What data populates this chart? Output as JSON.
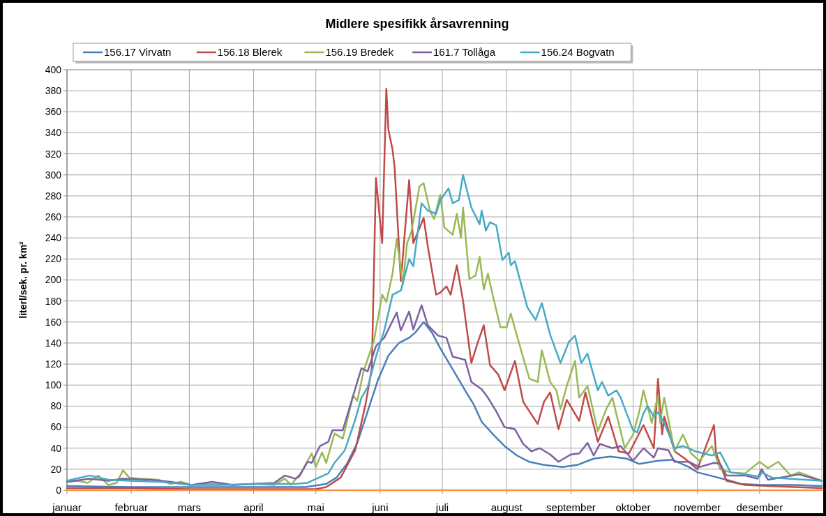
{
  "chart_data": {
    "type": "line",
    "title": "Midlere spesifikk årsavrenning",
    "ylabel": "literl/sek. pr. km²",
    "xlim": [
      "--01-01",
      "--12-31"
    ],
    "ylim": [
      0,
      400
    ],
    "xticks": [
      {
        "value": "--01-01",
        "label": "januar"
      },
      {
        "value": "--02-01",
        "label": "februar"
      },
      {
        "value": "--03-01",
        "label": "mars"
      },
      {
        "value": "--04-01",
        "label": "april"
      },
      {
        "value": "--05-01",
        "label": "mai"
      },
      {
        "value": "--06-01",
        "label": "juni"
      },
      {
        "value": "--07-01",
        "label": "juli"
      },
      {
        "value": "--08-01",
        "label": "august"
      },
      {
        "value": "--09-01",
        "label": "september"
      },
      {
        "value": "--10-01",
        "label": "oktober"
      },
      {
        "value": "--11-01",
        "label": "november"
      },
      {
        "value": "--12-01",
        "label": "desember"
      }
    ],
    "yticks": [
      0,
      20,
      40,
      60,
      80,
      100,
      120,
      140,
      160,
      180,
      200,
      220,
      240,
      260,
      280,
      300,
      320,
      340,
      360,
      380,
      400
    ],
    "grid": true,
    "legend": "top",
    "marker": "none",
    "line_style": "solid",
    "series": [
      {
        "name": "156.17 Virvatn",
        "color": "#4a7ebb",
        "x": [
          "--01-01",
          "--01-31",
          "--03-02",
          "--04-01",
          "--04-26",
          "--05-06",
          "--05-11",
          "--05-16",
          "--05-21",
          "--05-26",
          "--05-31",
          "--06-05",
          "--06-10",
          "--06-15",
          "--06-18",
          "--06-22",
          "--06-26",
          "--06-30",
          "--07-06",
          "--07-12",
          "--07-16",
          "--07-20",
          "--07-26",
          "--07-31",
          "--08-06",
          "--08-12",
          "--08-19",
          "--08-28",
          "--09-04",
          "--09-12",
          "--09-20",
          "--09-28",
          "--10-04",
          "--10-13",
          "--10-20",
          "--10-28",
          "--11-01",
          "--11-07",
          "--11-15",
          "--11-22",
          "--12-02",
          "--12-17",
          "--12-31"
        ],
        "values": [
          4,
          3,
          3,
          3,
          3,
          6,
          12,
          25,
          45,
          75,
          105,
          128,
          140,
          145,
          150,
          160,
          150,
          135,
          115,
          95,
          82,
          65,
          52,
          42,
          33,
          27,
          24,
          22,
          24,
          30,
          32,
          30,
          25,
          28,
          29,
          22,
          17,
          14,
          10,
          6,
          5,
          5,
          4
        ]
      },
      {
        "name": "156.18 Blerek",
        "color": "#be4b48",
        "x": [
          "--01-01",
          "--01-31",
          "--03-02",
          "--04-01",
          "--05-01",
          "--05-06",
          "--05-13",
          "--05-20",
          "--05-25",
          "--05-28",
          "--05-30",
          "--06-02",
          "--06-04",
          "--06-05",
          "--06-07",
          "--06-08",
          "--06-11",
          "--06-15",
          "--06-17",
          "--06-22",
          "--06-24",
          "--06-28",
          "--06-30",
          "--07-03",
          "--07-05",
          "--07-08",
          "--07-11",
          "--07-15",
          "--07-18",
          "--07-21",
          "--07-24",
          "--07-28",
          "--07-31",
          "--08-05",
          "--08-09",
          "--08-16",
          "--08-19",
          "--08-22",
          "--08-26",
          "--08-30",
          "--09-05",
          "--09-08",
          "--09-14",
          "--09-19",
          "--09-24",
          "--09-29",
          "--10-06",
          "--10-11",
          "--10-13",
          "--10-15",
          "--10-16",
          "--10-21",
          "--10-26",
          "--11-01",
          "--11-09",
          "--11-10",
          "--11-15",
          "--11-24",
          "--12-05",
          "--12-31"
        ],
        "values": [
          2,
          2,
          1,
          1,
          1,
          3,
          12,
          38,
          82,
          116,
          297,
          235,
          382,
          343,
          324,
          307,
          199,
          295,
          235,
          259,
          232,
          186,
          188,
          194,
          186,
          214,
          180,
          121,
          140,
          157,
          119,
          110,
          95,
          123,
          84,
          63,
          84,
          93,
          58,
          86,
          66,
          93,
          46,
          70,
          37,
          35,
          62,
          40,
          106,
          53,
          70,
          37,
          30,
          20,
          62,
          35,
          9,
          5,
          4,
          2
        ]
      },
      {
        "name": "156.19 Bredek",
        "color": "#98b954",
        "x": [
          "--01-01",
          "--01-06",
          "--01-11",
          "--01-16",
          "--01-21",
          "--01-25",
          "--01-28",
          "--01-31",
          "--02-05",
          "--02-14",
          "--02-20",
          "--02-25",
          "--03-02",
          "--03-12",
          "--03-22",
          "--04-01",
          "--04-11",
          "--04-16",
          "--04-19",
          "--04-24",
          "--04-29",
          "--05-01",
          "--05-04",
          "--05-06",
          "--05-10",
          "--05-14",
          "--05-15",
          "--05-19",
          "--05-21",
          "--05-24",
          "--05-29",
          "--06-02",
          "--06-04",
          "--06-07",
          "--06-09",
          "--06-12",
          "--06-14",
          "--06-16",
          "--06-20",
          "--06-22",
          "--06-25",
          "--06-27",
          "--06-30",
          "--07-02",
          "--07-06",
          "--07-08",
          "--07-10",
          "--07-11",
          "--07-14",
          "--07-17",
          "--07-19",
          "--07-21",
          "--07-23",
          "--07-25",
          "--07-29",
          "--08-01",
          "--08-03",
          "--08-09",
          "--08-12",
          "--08-16",
          "--08-18",
          "--08-22",
          "--08-25",
          "--08-27",
          "--08-30",
          "--09-03",
          "--09-05",
          "--09-09",
          "--09-14",
          "--09-18",
          "--09-21",
          "--09-24",
          "--09-27",
          "--10-01",
          "--10-04",
          "--10-06",
          "--10-10",
          "--10-13",
          "--10-14",
          "--10-16",
          "--10-21",
          "--10-25",
          "--10-29",
          "--11-02",
          "--11-08",
          "--11-12",
          "--11-17",
          "--11-24",
          "--12-01",
          "--12-05",
          "--12-10",
          "--12-16",
          "--12-20",
          "--12-31"
        ],
        "values": [
          8,
          9,
          7,
          14,
          5,
          7,
          19,
          12,
          11,
          10,
          6,
          8,
          5,
          6,
          5,
          6,
          5,
          11,
          5,
          17,
          35,
          22,
          36,
          26,
          54,
          49,
          57,
          90,
          85,
          113,
          142,
          186,
          179,
          206,
          239,
          196,
          235,
          245,
          289,
          292,
          266,
          258,
          281,
          250,
          243,
          263,
          240,
          269,
          201,
          204,
          222,
          191,
          206,
          188,
          155,
          155,
          168,
          126,
          106,
          103,
          133,
          103,
          95,
          77,
          99,
          123,
          88,
          99,
          56,
          77,
          88,
          64,
          40,
          53,
          75,
          95,
          64,
          90,
          64,
          88,
          37,
          53,
          35,
          28,
          42,
          20,
          17,
          16,
          27,
          21,
          27,
          14,
          17,
          9
        ]
      },
      {
        "name": "161.7 Tollåga",
        "color": "#7d60a0",
        "x": [
          "--01-01",
          "--01-12",
          "--01-21",
          "--01-28",
          "--02-10",
          "--02-20",
          "--03-02",
          "--03-12",
          "--03-22",
          "--04-01",
          "--04-11",
          "--04-16",
          "--04-21",
          "--04-23",
          "--04-27",
          "--04-29",
          "--05-03",
          "--05-07",
          "--05-09",
          "--05-14",
          "--05-19",
          "--05-23",
          "--05-26",
          "--05-30",
          "--06-03",
          "--06-09",
          "--06-11",
          "--06-15",
          "--06-17",
          "--06-21",
          "--06-24",
          "--06-29",
          "--07-03",
          "--07-06",
          "--07-12",
          "--07-15",
          "--07-20",
          "--07-23",
          "--07-27",
          "--07-31",
          "--08-05",
          "--08-09",
          "--08-13",
          "--08-17",
          "--08-22",
          "--08-26",
          "--09-01",
          "--09-05",
          "--09-09",
          "--09-12",
          "--09-15",
          "--09-21",
          "--09-25",
          "--10-01",
          "--10-06",
          "--10-11",
          "--10-13",
          "--10-18",
          "--10-21",
          "--10-28",
          "--11-02",
          "--11-09",
          "--11-12",
          "--11-15",
          "--11-24",
          "--11-30",
          "--12-02",
          "--12-05",
          "--12-20",
          "--12-31"
        ],
        "values": [
          8,
          11,
          9,
          11,
          10,
          8,
          5,
          8,
          5,
          6,
          7,
          14,
          11,
          13,
          27,
          26,
          42,
          46,
          57,
          57,
          90,
          116,
          113,
          137,
          145,
          169,
          152,
          170,
          153,
          176,
          157,
          147,
          145,
          127,
          124,
          103,
          96,
          88,
          75,
          60,
          58,
          44,
          37,
          40,
          34,
          27,
          34,
          35,
          45,
          33,
          44,
          40,
          42,
          28,
          40,
          31,
          40,
          38,
          27,
          27,
          22,
          26,
          25,
          14,
          14,
          11,
          20,
          10,
          15,
          9
        ]
      },
      {
        "name": "156.24 Bogvatn",
        "color": "#46aac5",
        "x": [
          "--01-01",
          "--01-12",
          "--01-21",
          "--01-31",
          "--02-15",
          "--03-02",
          "--03-17",
          "--04-01",
          "--04-21",
          "--04-27",
          "--05-07",
          "--05-10",
          "--05-15",
          "--05-20",
          "--05-23",
          "--05-26",
          "--05-30",
          "--06-03",
          "--06-07",
          "--06-11",
          "--06-15",
          "--06-17",
          "--06-21",
          "--06-24",
          "--06-28",
          "--06-30",
          "--07-04",
          "--07-06",
          "--07-09",
          "--07-11",
          "--07-15",
          "--07-19",
          "--07-20",
          "--07-22",
          "--07-24",
          "--07-27",
          "--07-30",
          "--08-02",
          "--08-03",
          "--08-05",
          "--08-11",
          "--08-15",
          "--08-18",
          "--08-22",
          "--08-27",
          "--08-31",
          "--09-03",
          "--09-06",
          "--09-09",
          "--09-14",
          "--09-16",
          "--09-19",
          "--09-23",
          "--09-25",
          "--10-01",
          "--10-03",
          "--10-06",
          "--10-08",
          "--10-11",
          "--10-13",
          "--10-16",
          "--10-21",
          "--10-25",
          "--10-31",
          "--11-08",
          "--11-12",
          "--11-17",
          "--11-24",
          "--12-01",
          "--12-02",
          "--12-07",
          "--12-31"
        ],
        "values": [
          9,
          14,
          10,
          9,
          8,
          5,
          5,
          6,
          6,
          7,
          16,
          26,
          38,
          67,
          88,
          98,
          127,
          152,
          186,
          190,
          220,
          213,
          273,
          266,
          263,
          276,
          287,
          273,
          276,
          300,
          269,
          253,
          266,
          247,
          255,
          252,
          219,
          226,
          214,
          218,
          174,
          162,
          178,
          148,
          121,
          141,
          147,
          121,
          130,
          95,
          103,
          90,
          95,
          88,
          57,
          55,
          73,
          80,
          70,
          74,
          64,
          40,
          42,
          37,
          33,
          36,
          17,
          15,
          13,
          17,
          12,
          9
        ]
      },
      {
        "color": "#f79646",
        "x": [
          "--01-01",
          "--12-31"
        ],
        "values": [
          0,
          0
        ]
      }
    ]
  }
}
